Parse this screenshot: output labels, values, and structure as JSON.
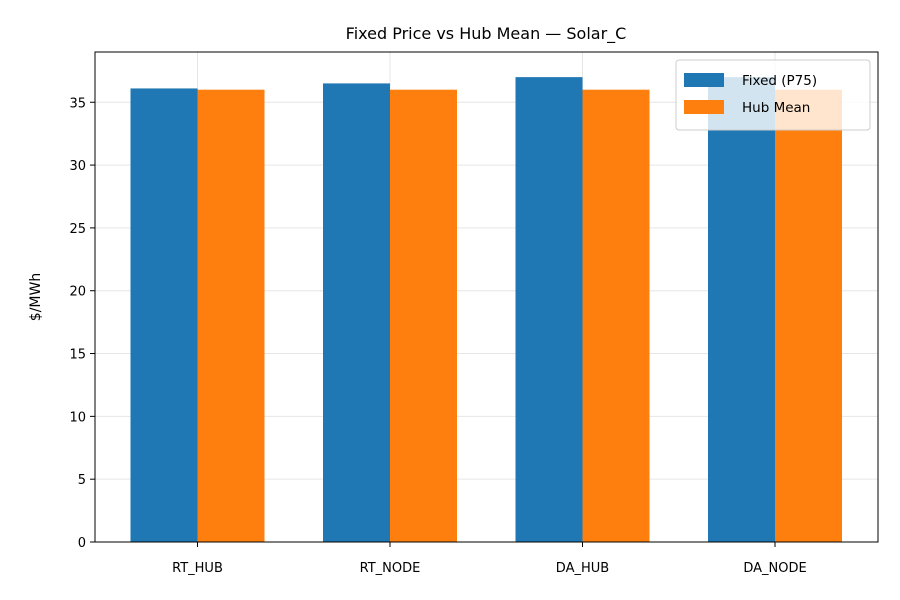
{
  "chart_data": {
    "type": "bar",
    "title": "Fixed Price vs Hub Mean — Solar_C",
    "xlabel": "",
    "ylabel": "$/MWh",
    "categories": [
      "RT_HUB",
      "RT_NODE",
      "DA_HUB",
      "DA_NODE"
    ],
    "series": [
      {
        "name": "Fixed (P75)",
        "values": [
          36.1,
          36.5,
          37.0,
          37.0
        ],
        "color": "#1f77b4"
      },
      {
        "name": "Hub Mean",
        "values": [
          36.0,
          36.0,
          36.0,
          36.0
        ],
        "color": "#ff7f0e"
      }
    ],
    "ylim": [
      0,
      39
    ],
    "yticks": [
      0,
      5,
      10,
      15,
      20,
      25,
      30,
      35
    ],
    "grid": true,
    "legend_position": "top-right"
  }
}
